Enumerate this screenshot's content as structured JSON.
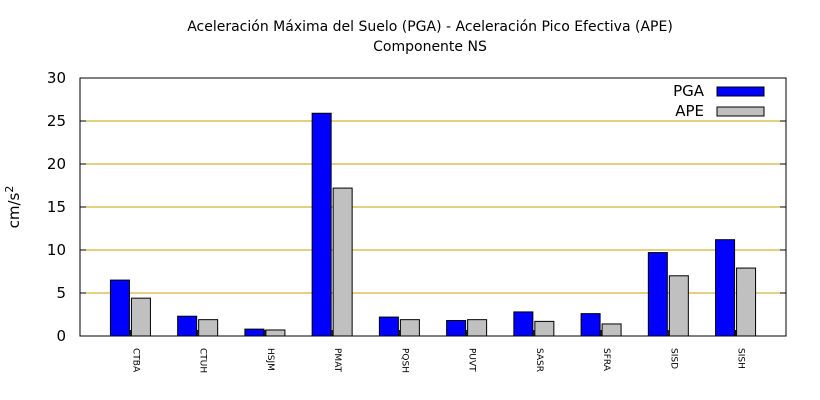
{
  "chart_data": {
    "type": "bar",
    "title": "Aceleración Máxima del Suelo (PGA) -  Aceleración Pico Efectiva (APE)",
    "subtitle": "Componente NS",
    "xlabel": "",
    "ylabel": "cm/s",
    "ylabel_sup": "2",
    "ylim": [
      0,
      30
    ],
    "yticks": [
      0,
      5,
      10,
      15,
      20,
      25,
      30
    ],
    "grid": "horizontal",
    "legend_position": "top-right",
    "categories": [
      "CTBA",
      "CTUH",
      "HSJM",
      "PMAT",
      "PQSH",
      "PUVT",
      "SASR",
      "SFRA",
      "SISD",
      "SISH"
    ],
    "series": [
      {
        "name": "PGA",
        "color": "#0000ff",
        "values": [
          6.5,
          2.3,
          0.8,
          25.9,
          2.2,
          1.8,
          2.8,
          2.6,
          9.7,
          11.2
        ]
      },
      {
        "name": "APE",
        "color": "#c0c0c0",
        "values": [
          4.4,
          1.9,
          0.7,
          17.2,
          1.9,
          1.9,
          1.7,
          1.4,
          7.0,
          7.9
        ]
      }
    ],
    "grid_color": "#c8a000"
  }
}
